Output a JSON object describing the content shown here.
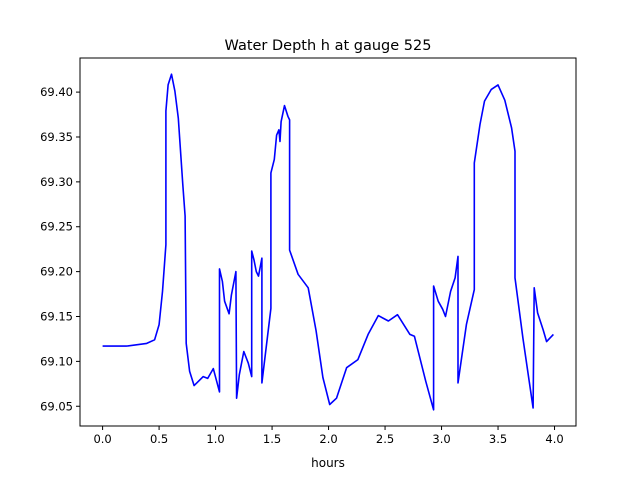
{
  "chart_data": {
    "type": "line",
    "title": "Water Depth h at gauge 525",
    "xlabel": "hours",
    "ylabel": "",
    "xlim": [
      -0.2,
      4.19
    ],
    "ylim": [
      69.028,
      69.438
    ],
    "grid": false,
    "xticks": [
      0.0,
      0.5,
      1.0,
      1.5,
      2.0,
      2.5,
      3.0,
      3.5,
      4.0
    ],
    "xtick_labels": [
      "0.0",
      "0.5",
      "1.0",
      "1.5",
      "2.0",
      "2.5",
      "3.0",
      "3.5",
      "4.0"
    ],
    "yticks": [
      69.05,
      69.1,
      69.15,
      69.2,
      69.25,
      69.3,
      69.35,
      69.4
    ],
    "ytick_labels": [
      "69.05",
      "69.10",
      "69.15",
      "69.20",
      "69.25",
      "69.30",
      "69.35",
      "69.40"
    ],
    "series": [
      {
        "name": "h",
        "color": "#0000ff",
        "x": [
          0,
          0.21,
          0.39,
          0.46,
          0.5,
          0.53,
          0.56,
          0.56,
          0.58,
          0.61,
          0.64,
          0.67,
          0.71,
          0.73,
          0.74,
          0.77,
          0.81,
          0.89,
          0.93,
          0.98,
          1.035,
          1.035,
          1.06,
          1.08,
          1.12,
          1.14,
          1.18,
          1.186,
          1.21,
          1.25,
          1.29,
          1.32,
          1.32,
          1.34,
          1.36,
          1.38,
          1.41,
          1.41,
          1.49,
          1.49,
          1.52,
          1.54,
          1.56,
          1.57,
          1.58,
          1.61,
          1.64,
          1.655,
          1.655,
          1.73,
          1.82,
          1.89,
          1.95,
          2.01,
          2.07,
          2.16,
          2.26,
          2.35,
          2.44,
          2.53,
          2.61,
          2.72,
          2.76,
          2.86,
          2.93,
          2.93,
          2.97,
          3.01,
          3.035,
          3.08,
          3.12,
          3.146,
          3.146,
          3.22,
          3.29,
          3.29,
          3.34,
          3.38,
          3.44,
          3.5,
          3.56,
          3.62,
          3.65,
          3.65,
          3.72,
          3.81,
          3.82,
          3.85,
          3.9,
          3.93,
          3.99
        ],
        "y": [
          69.117,
          69.117,
          69.12,
          69.124,
          69.141,
          69.178,
          69.23,
          69.379,
          69.408,
          69.42,
          69.401,
          69.371,
          69.297,
          69.262,
          69.12,
          69.089,
          69.073,
          69.083,
          69.081,
          69.092,
          69.066,
          69.203,
          69.189,
          69.167,
          69.153,
          69.174,
          69.2,
          69.059,
          69.085,
          69.111,
          69.098,
          69.083,
          69.223,
          69.213,
          69.2,
          69.195,
          69.215,
          69.076,
          69.159,
          69.31,
          69.325,
          69.352,
          69.358,
          69.345,
          69.367,
          69.385,
          69.373,
          69.369,
          69.224,
          69.197,
          69.182,
          69.134,
          69.082,
          69.052,
          69.059,
          69.093,
          69.102,
          69.13,
          69.151,
          69.145,
          69.152,
          69.13,
          69.128,
          69.078,
          69.046,
          69.184,
          69.167,
          69.158,
          69.15,
          69.178,
          69.193,
          69.217,
          69.076,
          69.141,
          69.18,
          69.321,
          69.364,
          69.39,
          69.403,
          69.408,
          69.391,
          69.36,
          69.334,
          69.193,
          69.126,
          69.048,
          69.182,
          69.154,
          69.135,
          69.122,
          69.13
        ]
      }
    ]
  }
}
